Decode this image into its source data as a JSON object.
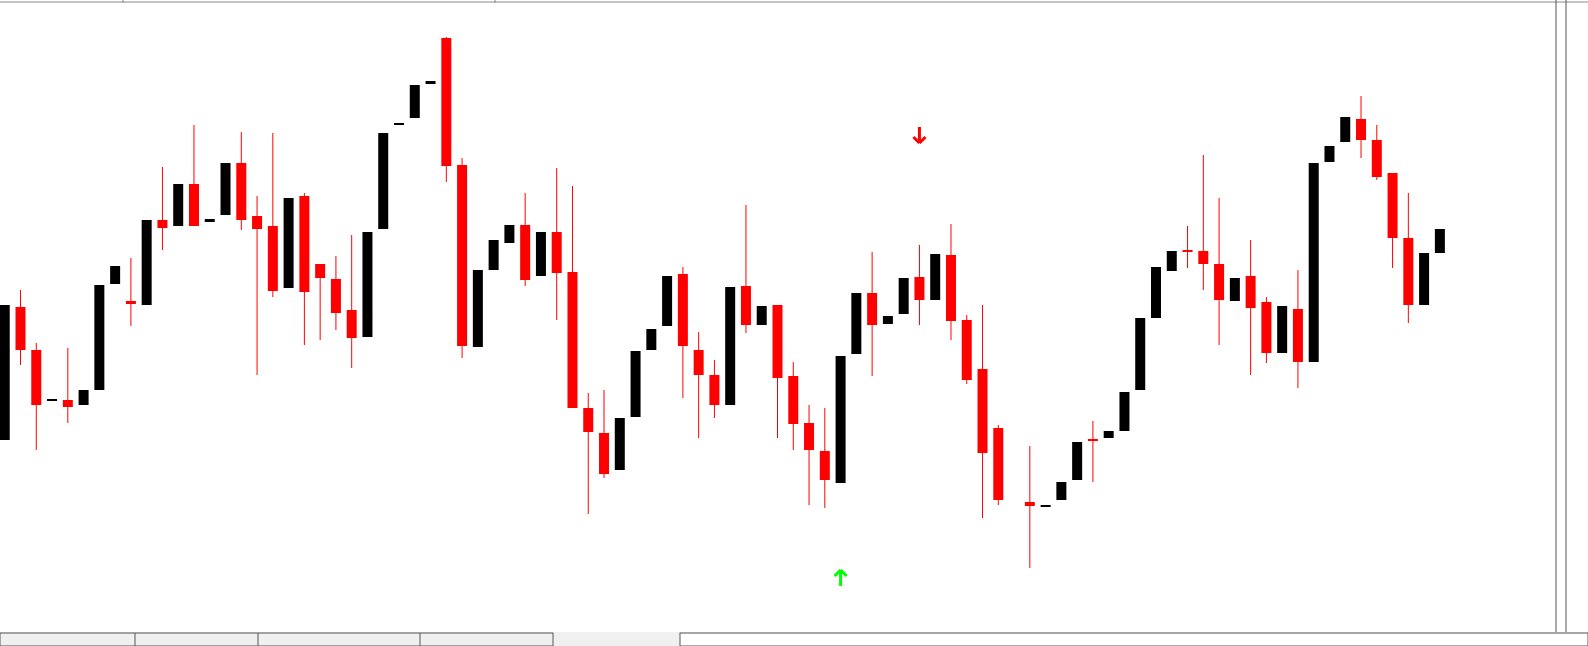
{
  "chart_data": {
    "type": "candlestick",
    "x": [
      0,
      1,
      2,
      3,
      4,
      5,
      6,
      7,
      8,
      9,
      10,
      11,
      12,
      13,
      14,
      15,
      16,
      17,
      18,
      19,
      20,
      21,
      22,
      23,
      24,
      25,
      26,
      27,
      28,
      29,
      30,
      31,
      32,
      33,
      34,
      35,
      36,
      37,
      38,
      39,
      40,
      41,
      42,
      43,
      44,
      45,
      46,
      47,
      48,
      49,
      50,
      51,
      52,
      53,
      54,
      55,
      56,
      57,
      58,
      59,
      60,
      61,
      62,
      63,
      65,
      66,
      67,
      68,
      69,
      70,
      71,
      72,
      73,
      74,
      75,
      76,
      77,
      78,
      79,
      80,
      81,
      82,
      83,
      84,
      85,
      86,
      87,
      88,
      89,
      90,
      91
    ],
    "open": [
      210,
      343,
      300,
      249,
      250,
      245,
      260,
      366,
      349,
      345,
      430,
      424,
      466,
      428,
      435,
      487,
      434,
      424,
      362,
      454,
      386,
      371,
      340,
      313,
      421,
      525,
      532,
      566,
      612,
      485,
      303,
      380,
      407,
      425,
      374,
      418,
      378,
      242,
      217,
      180,
      233,
      300,
      324,
      376,
      300,
      275,
      245,
      364,
      325,
      345,
      274,
      227,
      199,
      167,
      296,
      357,
      326,
      336,
      373,
      350,
      395,
      330,
      281,
      222,
      148,
      143,
      150,
      170,
      211,
      212,
      219,
      260,
      332,
      379,
      400,
      399,
      386,
      349,
      374,
      348,
      297,
      341,
      288,
      488,
      508,
      531,
      510,
      477,
      412,
      345,
      397
    ],
    "high": [
      345,
      360,
      307,
      251,
      302,
      260,
      365,
      384,
      392,
      430,
      483,
      466,
      525,
      431,
      487,
      518,
      454,
      517,
      452,
      457,
      386,
      394,
      415,
      418,
      517,
      527,
      565,
      569,
      613,
      492,
      380,
      410,
      425,
      457,
      418,
      482,
      464,
      257,
      260,
      232,
      299,
      321,
      374,
      383,
      318,
      290,
      363,
      445,
      344,
      345,
      288,
      245,
      242,
      294,
      357,
      398,
      334,
      372,
      405,
      396,
      426,
      335,
      345,
      225,
      204,
      145,
      168,
      208,
      229,
      219,
      258,
      332,
      383,
      399,
      424,
      495,
      452,
      372,
      410,
      353,
      344,
      380,
      487,
      504,
      533,
      554,
      525,
      477,
      457,
      397,
      421
    ],
    "low": [
      210,
      285,
      200,
      249,
      227,
      245,
      260,
      366,
      324,
      345,
      400,
      424,
      424,
      428,
      435,
      420,
      275,
      353,
      362,
      305,
      310,
      320,
      282,
      313,
      421,
      525,
      532,
      566,
      468,
      292,
      303,
      380,
      407,
      364,
      374,
      330,
      242,
      136,
      172,
      180,
      233,
      300,
      324,
      252,
      212,
      232,
      245,
      317,
      325,
      212,
      200,
      145,
      142,
      167,
      296,
      274,
      326,
      336,
      325,
      350,
      310,
      266,
      132,
      145,
      82,
      143,
      150,
      170,
      168,
      212,
      219,
      260,
      332,
      379,
      382,
      360,
      305,
      349,
      275,
      287,
      297,
      262,
      288,
      488,
      508,
      492,
      470,
      382,
      327,
      345,
      397
    ],
    "close": [
      345,
      300,
      245,
      251,
      243,
      260,
      365,
      384,
      346,
      430,
      422,
      466,
      424,
      431,
      487,
      430,
      421,
      359,
      452,
      358,
      372,
      337,
      312,
      418,
      517,
      527,
      565,
      569,
      484,
      304,
      380,
      410,
      425,
      370,
      418,
      377,
      242,
      218,
      176,
      232,
      299,
      321,
      374,
      304,
      275,
      245,
      363,
      325,
      344,
      272,
      226,
      200,
      170,
      294,
      357,
      325,
      334,
      372,
      350,
      396,
      329,
      270,
      197,
      150,
      144,
      145,
      168,
      208,
      209,
      219,
      258,
      332,
      383,
      399,
      398,
      386,
      350,
      372,
      342,
      297,
      344,
      288,
      487,
      504,
      533,
      510,
      473,
      412,
      345,
      397,
      421
    ],
    "up_color": "#000000",
    "down_color": "#ff0000",
    "signals": [
      {
        "x": 58,
        "y": 515,
        "direction": "down",
        "color": "#ff0000"
      },
      {
        "x": 53,
        "y": 72,
        "direction": "up",
        "color": "#00ff00"
      }
    ],
    "xlim": [
      -0.3,
      98.3
    ],
    "ylim": [
      4,
      650
    ]
  }
}
